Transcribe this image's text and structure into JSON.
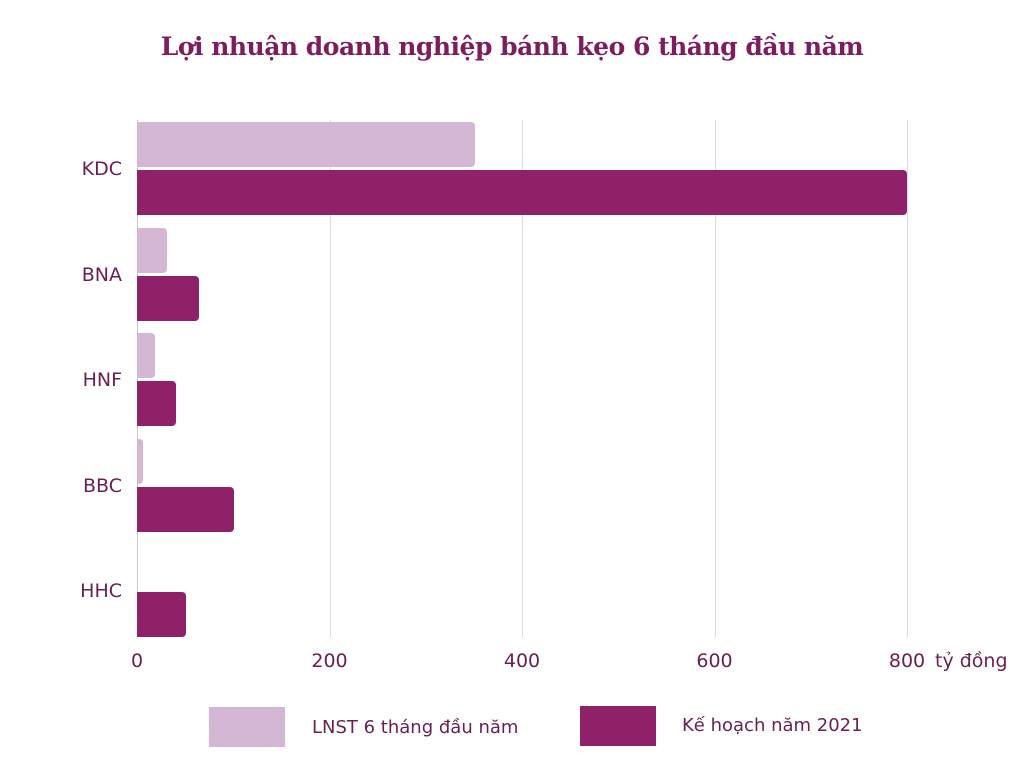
{
  "chart_data": {
    "type": "bar",
    "orientation": "horizontal",
    "title": "Lợi nhuận doanh nghiệp bánh kẹo 6 tháng đầu năm",
    "xlabel": "tỷ đồng",
    "ylabel": "",
    "categories": [
      "KDC",
      "BNA",
      "HNF",
      "BBC",
      "HHC"
    ],
    "series": [
      {
        "name": "LNST 6 tháng đầu năm",
        "color": "#d4b6d5",
        "values": [
          351,
          31,
          19,
          6,
          0
        ]
      },
      {
        "name": "Kế hoạch năm 2021",
        "color": "#8e2168",
        "values": [
          800,
          64,
          40,
          101,
          51
        ]
      }
    ],
    "xlim": [
      0,
      800
    ],
    "x_ticks": [
      "0",
      "200",
      "400",
      "600",
      "800"
    ],
    "grid": true,
    "legend_position": "bottom"
  },
  "legend": [
    {
      "label": "LNST 6 tháng đầu năm"
    },
    {
      "label": "Kế hoạch năm 2021"
    }
  ]
}
